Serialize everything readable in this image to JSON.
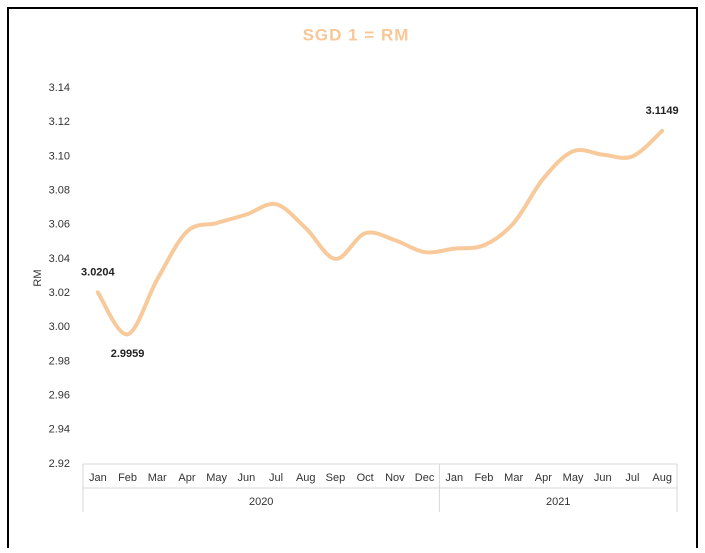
{
  "chart_data": {
    "type": "line",
    "title": "SGD 1 = RM",
    "y_label": "RM",
    "categories": [
      "Jan",
      "Feb",
      "Mar",
      "Apr",
      "May",
      "Jun",
      "Jul",
      "Aug",
      "Sep",
      "Oct",
      "Nov",
      "Dec",
      "Jan",
      "Feb",
      "Mar",
      "Apr",
      "May",
      "Jun",
      "Jul",
      "Aug"
    ],
    "category_groups": [
      "2020",
      "2021"
    ],
    "series": [
      {
        "name": "SGD 1 = RM",
        "color": "#f8c99a",
        "values": [
          3.0204,
          2.9959,
          3.028,
          3.056,
          3.061,
          3.066,
          3.072,
          3.058,
          3.04,
          3.055,
          3.051,
          3.044,
          3.046,
          3.048,
          3.061,
          3.087,
          3.103,
          3.101,
          3.1,
          3.1149
        ],
        "value_labels": [
          "3.0204",
          "2.9959",
          null,
          null,
          null,
          null,
          null,
          null,
          null,
          null,
          null,
          null,
          null,
          null,
          null,
          null,
          null,
          null,
          null,
          "3.1149"
        ]
      }
    ],
    "ylim": [
      2.92,
      3.14
    ],
    "yticks": [
      {
        "value": 2.92,
        "label": "2.92"
      },
      {
        "value": 2.94,
        "label": "2.94"
      },
      {
        "value": 2.96,
        "label": "2.96"
      },
      {
        "value": 2.98,
        "label": "2.98"
      },
      {
        "value": 3.0,
        "label": "3.00"
      },
      {
        "value": 3.02,
        "label": "3.02"
      },
      {
        "value": 3.04,
        "label": "3.04"
      },
      {
        "value": 3.06,
        "label": "3.06"
      },
      {
        "value": 3.08,
        "label": "3.08"
      },
      {
        "value": 3.1,
        "label": "3.10"
      },
      {
        "value": 3.12,
        "label": "3.12"
      },
      {
        "value": 3.14,
        "label": "3.14"
      }
    ],
    "grid": false
  }
}
